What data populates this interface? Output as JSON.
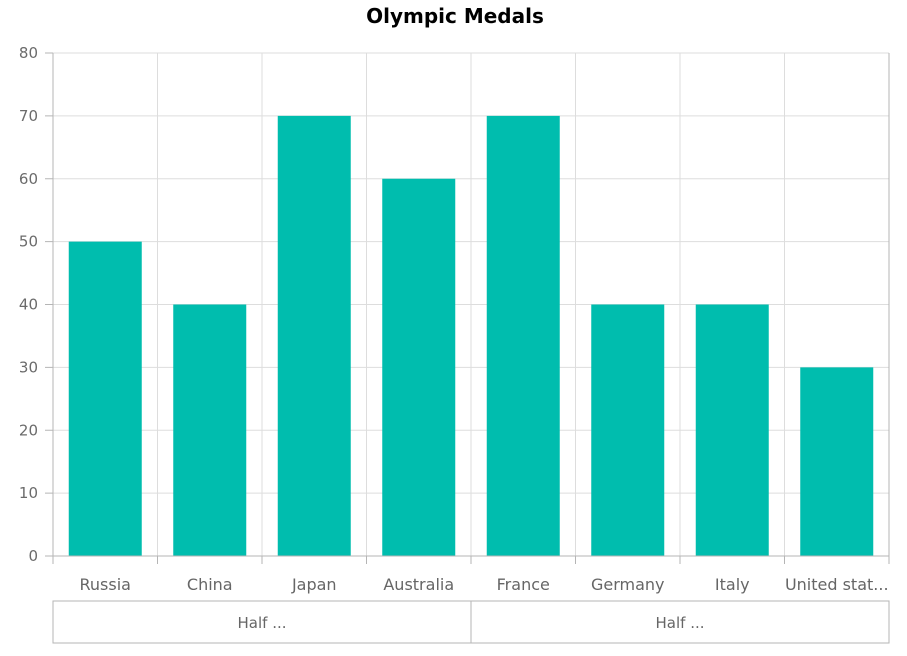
{
  "chart_data": {
    "type": "bar",
    "title": "Olympic Medals",
    "categories": [
      "Russia",
      "China",
      "Japan",
      "Australia",
      "France",
      "Germany",
      "Italy",
      "United stat..."
    ],
    "values": [
      50,
      40,
      70,
      60,
      70,
      40,
      40,
      30
    ],
    "ylim": [
      0,
      80
    ],
    "yticks": [
      "0",
      "10",
      "20",
      "30",
      "40",
      "50",
      "60",
      "70",
      "80"
    ],
    "groups": [
      {
        "label": "Half ...",
        "span": [
          0,
          3
        ]
      },
      {
        "label": "Half ...",
        "span": [
          4,
          7
        ]
      }
    ],
    "grid": true,
    "bar_color": "#00bdae"
  }
}
